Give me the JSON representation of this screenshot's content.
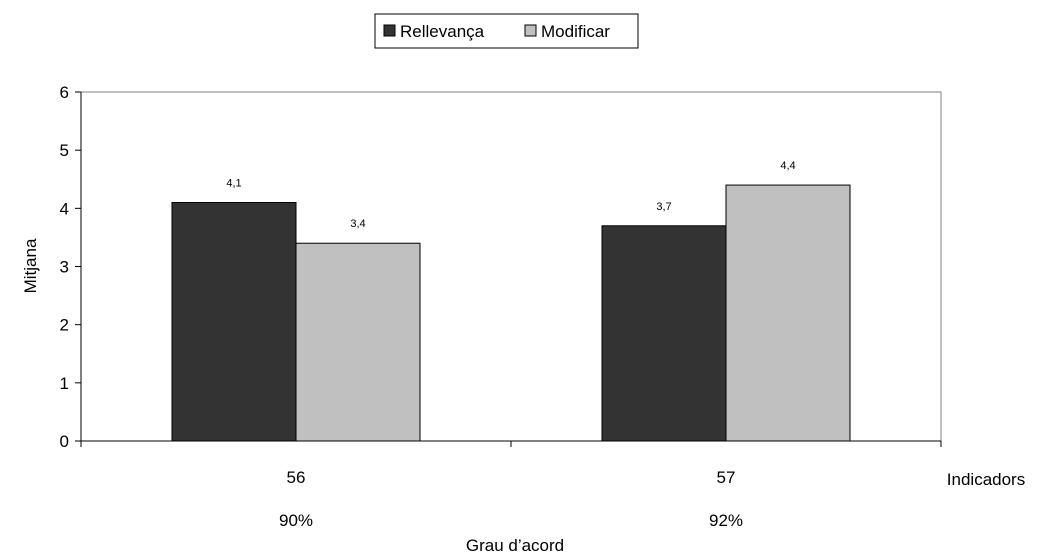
{
  "chart_data": {
    "type": "bar",
    "categories": [
      "56",
      "57"
    ],
    "category_sublabels": [
      "90%",
      "92%"
    ],
    "series": [
      {
        "name": "Rellevança",
        "values": [
          4.1,
          3.7
        ],
        "data_labels": [
          "4,1",
          "3,7"
        ],
        "color": "#333333"
      },
      {
        "name": "Modificar",
        "values": [
          3.4,
          4.4
        ],
        "data_labels": [
          "3,4",
          "4,4"
        ],
        "color": "#c0c0c0"
      }
    ],
    "ylabel": "Mitjana",
    "xlabel": "Grau d’acord",
    "x_side_label": "Indicadors",
    "ylim": [
      0,
      6
    ],
    "yticks": [
      0,
      1,
      2,
      3,
      4,
      5,
      6
    ],
    "grid": false,
    "legend_position": "top"
  }
}
